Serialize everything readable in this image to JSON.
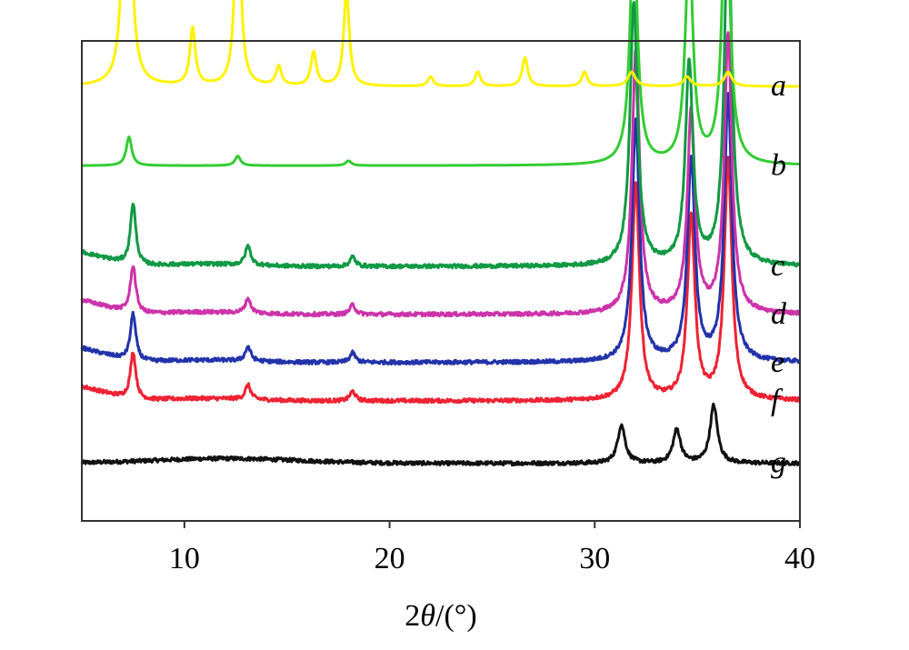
{
  "chart_data": {
    "type": "line",
    "title": "",
    "xlabel_prefix": "2",
    "xlabel_symbol": "θ",
    "xlabel_unit": "/(°)",
    "ylabel": "",
    "xlim": [
      5,
      40
    ],
    "xticks": [
      "10",
      "20",
      "30",
      "40"
    ],
    "xtick_values": [
      10,
      20,
      30,
      40
    ],
    "grid": false,
    "legend": "series labels at right end of each curve",
    "series": [
      {
        "name": "a",
        "color": "#FFF200",
        "baseline": 0.905,
        "peaks": [
          [
            7.2,
            0.98
          ],
          [
            10.4,
            0.12
          ],
          [
            12.6,
            0.44
          ],
          [
            14.6,
            0.04
          ],
          [
            16.3,
            0.07
          ],
          [
            17.9,
            0.2
          ],
          [
            22.0,
            0.02
          ],
          [
            24.3,
            0.03
          ],
          [
            26.6,
            0.06
          ],
          [
            29.5,
            0.03
          ],
          [
            31.8,
            0.03
          ],
          [
            34.5,
            0.02
          ],
          [
            36.5,
            0.03
          ]
        ]
      },
      {
        "name": "b",
        "color": "#33CC33",
        "baseline": 0.74,
        "peaks": [
          [
            7.3,
            0.06
          ],
          [
            12.6,
            0.02
          ],
          [
            18.0,
            0.01
          ],
          [
            31.9,
            0.49
          ],
          [
            34.6,
            0.46
          ],
          [
            36.4,
            0.6
          ]
        ]
      },
      {
        "name": "c",
        "color": "#119944",
        "baseline": 0.53,
        "peaks": [
          [
            7.5,
            0.13
          ],
          [
            13.1,
            0.04
          ],
          [
            18.2,
            0.02
          ],
          [
            31.9,
            0.55
          ],
          [
            34.6,
            0.42
          ],
          [
            36.5,
            0.73
          ]
        ]
      },
      {
        "name": "d",
        "color": "#CC33AA",
        "baseline": 0.43,
        "peaks": [
          [
            7.5,
            0.1
          ],
          [
            13.1,
            0.03
          ],
          [
            18.2,
            0.02
          ],
          [
            32.0,
            0.55
          ],
          [
            34.7,
            0.42
          ],
          [
            36.5,
            0.58
          ]
        ]
      },
      {
        "name": "e",
        "color": "#2233AA",
        "baseline": 0.33,
        "peaks": [
          [
            7.5,
            0.1
          ],
          [
            13.1,
            0.03
          ],
          [
            18.2,
            0.02
          ],
          [
            32.0,
            0.5
          ],
          [
            34.7,
            0.42
          ],
          [
            36.5,
            0.55
          ]
        ]
      },
      {
        "name": "f",
        "color": "#EE2233",
        "baseline": 0.25,
        "peaks": [
          [
            7.5,
            0.1
          ],
          [
            13.1,
            0.03
          ],
          [
            18.2,
            0.02
          ],
          [
            32.0,
            0.45
          ],
          [
            34.7,
            0.38
          ],
          [
            36.5,
            0.5
          ]
        ]
      },
      {
        "name": "g",
        "color": "#111111",
        "baseline": 0.12,
        "peaks": [
          [
            31.3,
            0.08
          ],
          [
            34.0,
            0.07
          ],
          [
            35.8,
            0.12
          ]
        ]
      }
    ]
  }
}
